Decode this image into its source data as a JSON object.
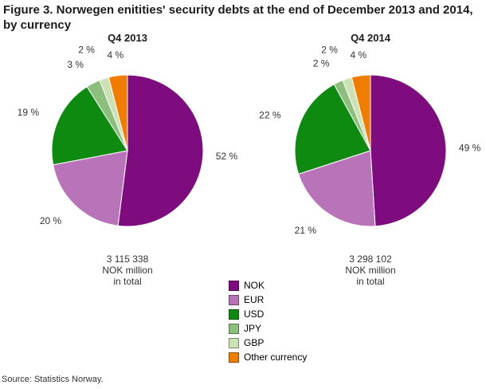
{
  "title": "Figure 3. Norwegen enitities' security debts at the end of December 2013 and 2014, by currency",
  "source": "Source: Statistics Norway.",
  "legend": {
    "items": [
      {
        "label": "NOK",
        "color": "#7f0c7f"
      },
      {
        "label": "EUR",
        "color": "#b973b9"
      },
      {
        "label": "USD",
        "color": "#0f8a10"
      },
      {
        "label": "JPY",
        "color": "#8cbe7e"
      },
      {
        "label": "GBP",
        "color": "#cbe2b4"
      },
      {
        "label": "Other currency",
        "color": "#f07d00"
      }
    ]
  },
  "chart_data": [
    {
      "type": "pie",
      "title": "Q4 2013",
      "categories": [
        "NOK",
        "EUR",
        "USD",
        "JPY",
        "GBP",
        "Other currency"
      ],
      "values": [
        52,
        20,
        19,
        3,
        2,
        4
      ],
      "labels": [
        "52 %",
        "20 %",
        "19 %",
        "3 %",
        "2 %",
        "4 %"
      ],
      "colors": [
        "#7f0c7f",
        "#b973b9",
        "#0f8a10",
        "#8cbe7e",
        "#cbe2b4",
        "#f07d00"
      ],
      "start_angle_deg": 0,
      "direction": "clockwise",
      "total_label": "3 115 338 NOK million in total",
      "total_lines": [
        "3 115 338",
        "NOK million",
        "in total"
      ]
    },
    {
      "type": "pie",
      "title": "Q4 2014",
      "categories": [
        "NOK",
        "EUR",
        "USD",
        "JPY",
        "GBP",
        "Other currency"
      ],
      "values": [
        49,
        21,
        22,
        2,
        2,
        4
      ],
      "labels": [
        "49 %",
        "21 %",
        "22 %",
        "2 %",
        "2 %",
        "4 %"
      ],
      "colors": [
        "#7f0c7f",
        "#b973b9",
        "#0f8a10",
        "#8cbe7e",
        "#cbe2b4",
        "#f07d00"
      ],
      "start_angle_deg": 0,
      "direction": "clockwise",
      "total_label": "3 298 102 NOK million in total",
      "total_lines": [
        "3 298 102",
        "NOK million",
        "in total"
      ]
    }
  ]
}
